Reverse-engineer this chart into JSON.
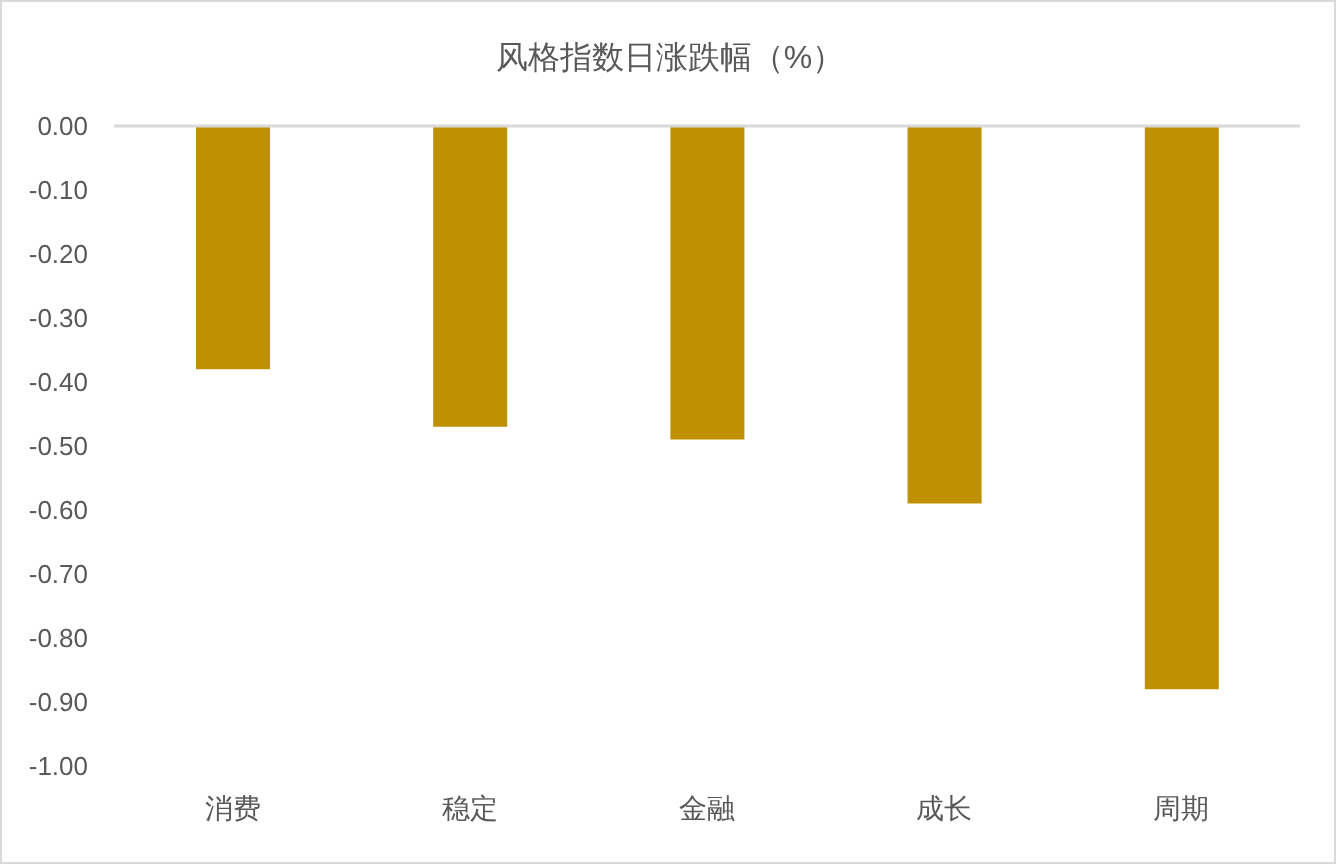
{
  "chart_data": {
    "type": "bar",
    "title": "风格指数日涨跌幅（%）",
    "categories": [
      "消费",
      "稳定",
      "金融",
      "成长",
      "周期"
    ],
    "values": [
      -0.38,
      -0.47,
      -0.49,
      -0.59,
      -0.88
    ],
    "color": "#bf9000",
    "ylim": [
      -1,
      0
    ],
    "yticks": [
      {
        "value": 0,
        "label": "0.00"
      },
      {
        "value": -0.1,
        "label": "-0.10"
      },
      {
        "value": -0.2,
        "label": "-0.20"
      },
      {
        "value": -0.3,
        "label": "-0.30"
      },
      {
        "value": -0.4,
        "label": "-0.40"
      },
      {
        "value": -0.5,
        "label": "-0.50"
      },
      {
        "value": -0.6,
        "label": "-0.60"
      },
      {
        "value": -0.7,
        "label": "-0.70"
      },
      {
        "value": -0.8,
        "label": "-0.80"
      },
      {
        "value": -0.9,
        "label": "-0.90"
      },
      {
        "value": -1,
        "label": "-1.00"
      }
    ]
  }
}
